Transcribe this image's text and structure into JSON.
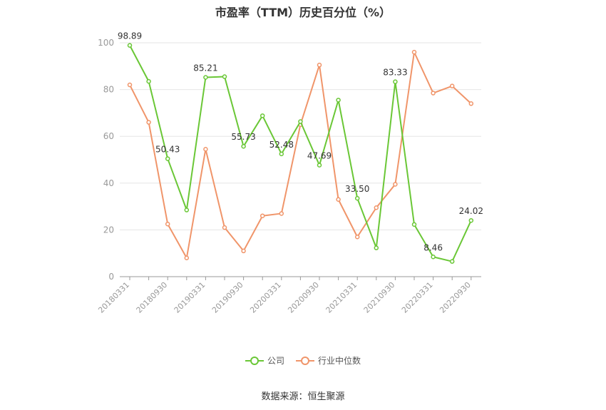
{
  "chart_data": {
    "type": "line",
    "title": "市盈率（TTM）历史百分位（%）",
    "xlabel": "",
    "ylabel": "",
    "ylim": [
      0,
      100
    ],
    "yticks": [
      0,
      20,
      40,
      60,
      80,
      100
    ],
    "x": [
      "20180331",
      "20180630",
      "20180930",
      "20181231",
      "20190331",
      "20190630",
      "20190930",
      "20191231",
      "20200331",
      "20200630",
      "20200930",
      "20201231",
      "20210331",
      "20210630",
      "20210930",
      "20211231",
      "20220331",
      "20220630",
      "20220930"
    ],
    "xtick_labels": [
      "20180331",
      "20180930",
      "20190331",
      "20190930",
      "20200331",
      "20200930",
      "20210331",
      "20210930",
      "20220331",
      "20220930"
    ],
    "grid": true,
    "legend_position": "bottom",
    "series": [
      {
        "name": "公司",
        "color": "#6ac736",
        "values": [
          98.89,
          83.5,
          50.43,
          28.5,
          85.21,
          85.5,
          55.73,
          68.8,
          52.48,
          66.3,
          47.69,
          75.5,
          33.5,
          12.3,
          83.33,
          22.3,
          8.46,
          6.5,
          24.02
        ],
        "labels": [
          "98.89",
          "",
          "50.43",
          "",
          "85.21",
          "",
          "55.73",
          "",
          "52.48",
          "",
          "47.69",
          "",
          "33.50",
          "",
          "83.33",
          "",
          "8.46",
          "",
          "24.02"
        ]
      },
      {
        "name": "行业中位数",
        "color": "#f0956a",
        "values": [
          82.0,
          66.0,
          22.5,
          8.0,
          54.5,
          21.0,
          11.0,
          26.0,
          27.0,
          65.0,
          90.5,
          33.0,
          17.0,
          29.5,
          39.5,
          96.0,
          78.5,
          81.5,
          74.0
        ]
      }
    ]
  },
  "source_text": "数据来源：恒生聚源"
}
